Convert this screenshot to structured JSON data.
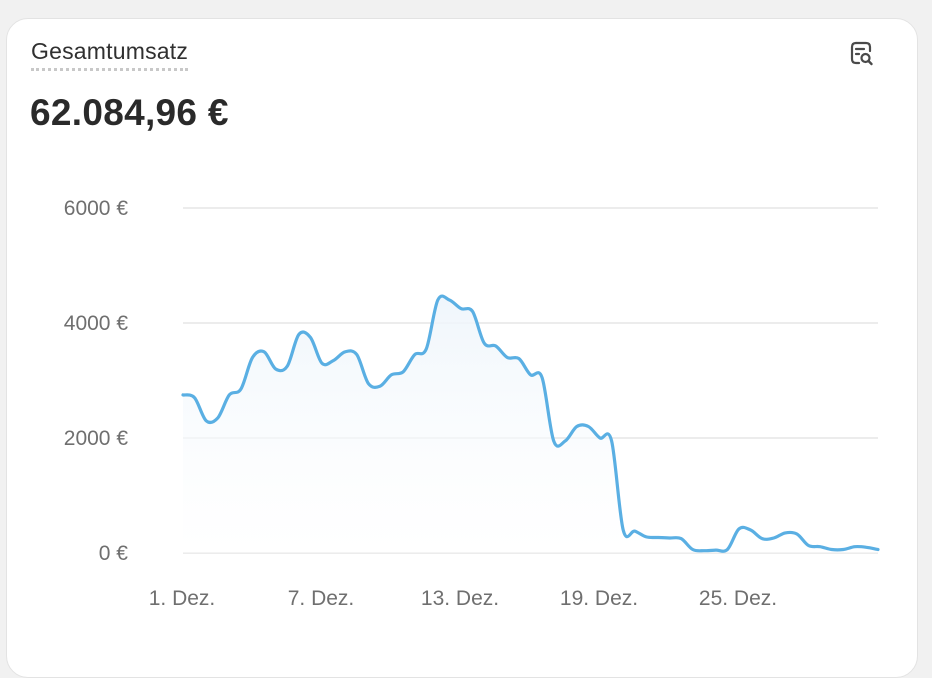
{
  "card": {
    "title": "Gesamtumsatz",
    "value": "62.084,96 €",
    "explore_icon": "chart-search-icon"
  },
  "colors": {
    "line": "#5aafe3",
    "fill_top": "#eef5fb",
    "grid": "#e6e6e6",
    "tick_text": "#6f6f6f"
  },
  "chart_data": {
    "type": "area",
    "title": "",
    "xlabel": "",
    "ylabel": "",
    "ylim": [
      0,
      6000
    ],
    "yticks": [
      0,
      2000,
      4000,
      6000
    ],
    "ytick_labels": [
      "0 €",
      "2000 €",
      "4000 €",
      "6000 €"
    ],
    "grid": true,
    "x_tick_labels": [
      "1. Dez.",
      "7. Dez.",
      "13. Dez.",
      "19. Dez.",
      "25. Dez."
    ],
    "x_tick_days": [
      1,
      7,
      13,
      19,
      25
    ],
    "x_range_days": [
      1,
      31
    ],
    "series": [
      {
        "x": [
          1,
          1.5,
          2,
          2.5,
          3,
          3.5,
          4,
          4.5,
          5,
          5.5,
          6,
          6.5,
          7,
          7.5,
          8,
          8.5,
          9,
          9.5,
          10,
          10.5,
          11,
          11.5,
          12,
          12.5,
          13,
          13.5,
          14,
          14.5,
          15,
          15.5,
          16,
          16.5,
          17,
          17.5,
          18,
          18.5,
          19,
          19.5,
          20,
          20.5,
          21,
          21.5,
          22,
          22.5,
          23,
          23.5,
          24,
          24.5,
          25,
          25.5,
          26,
          26.5,
          27,
          27.5,
          28,
          28.5,
          29,
          29.5,
          30,
          30.5,
          31
        ],
        "values": [
          2750,
          2700,
          2300,
          2350,
          2750,
          2850,
          3400,
          3500,
          3200,
          3250,
          3800,
          3750,
          3300,
          3350,
          3500,
          3450,
          2950,
          2900,
          3100,
          3150,
          3450,
          3550,
          4400,
          4400,
          4250,
          4200,
          3650,
          3600,
          3400,
          3380,
          3100,
          3050,
          1950,
          1950,
          2200,
          2200,
          2000,
          1950,
          400,
          380,
          280,
          270,
          260,
          250,
          60,
          40,
          50,
          60,
          420,
          400,
          250,
          260,
          350,
          330,
          130,
          110,
          60,
          60,
          110,
          100,
          60
        ]
      }
    ]
  }
}
